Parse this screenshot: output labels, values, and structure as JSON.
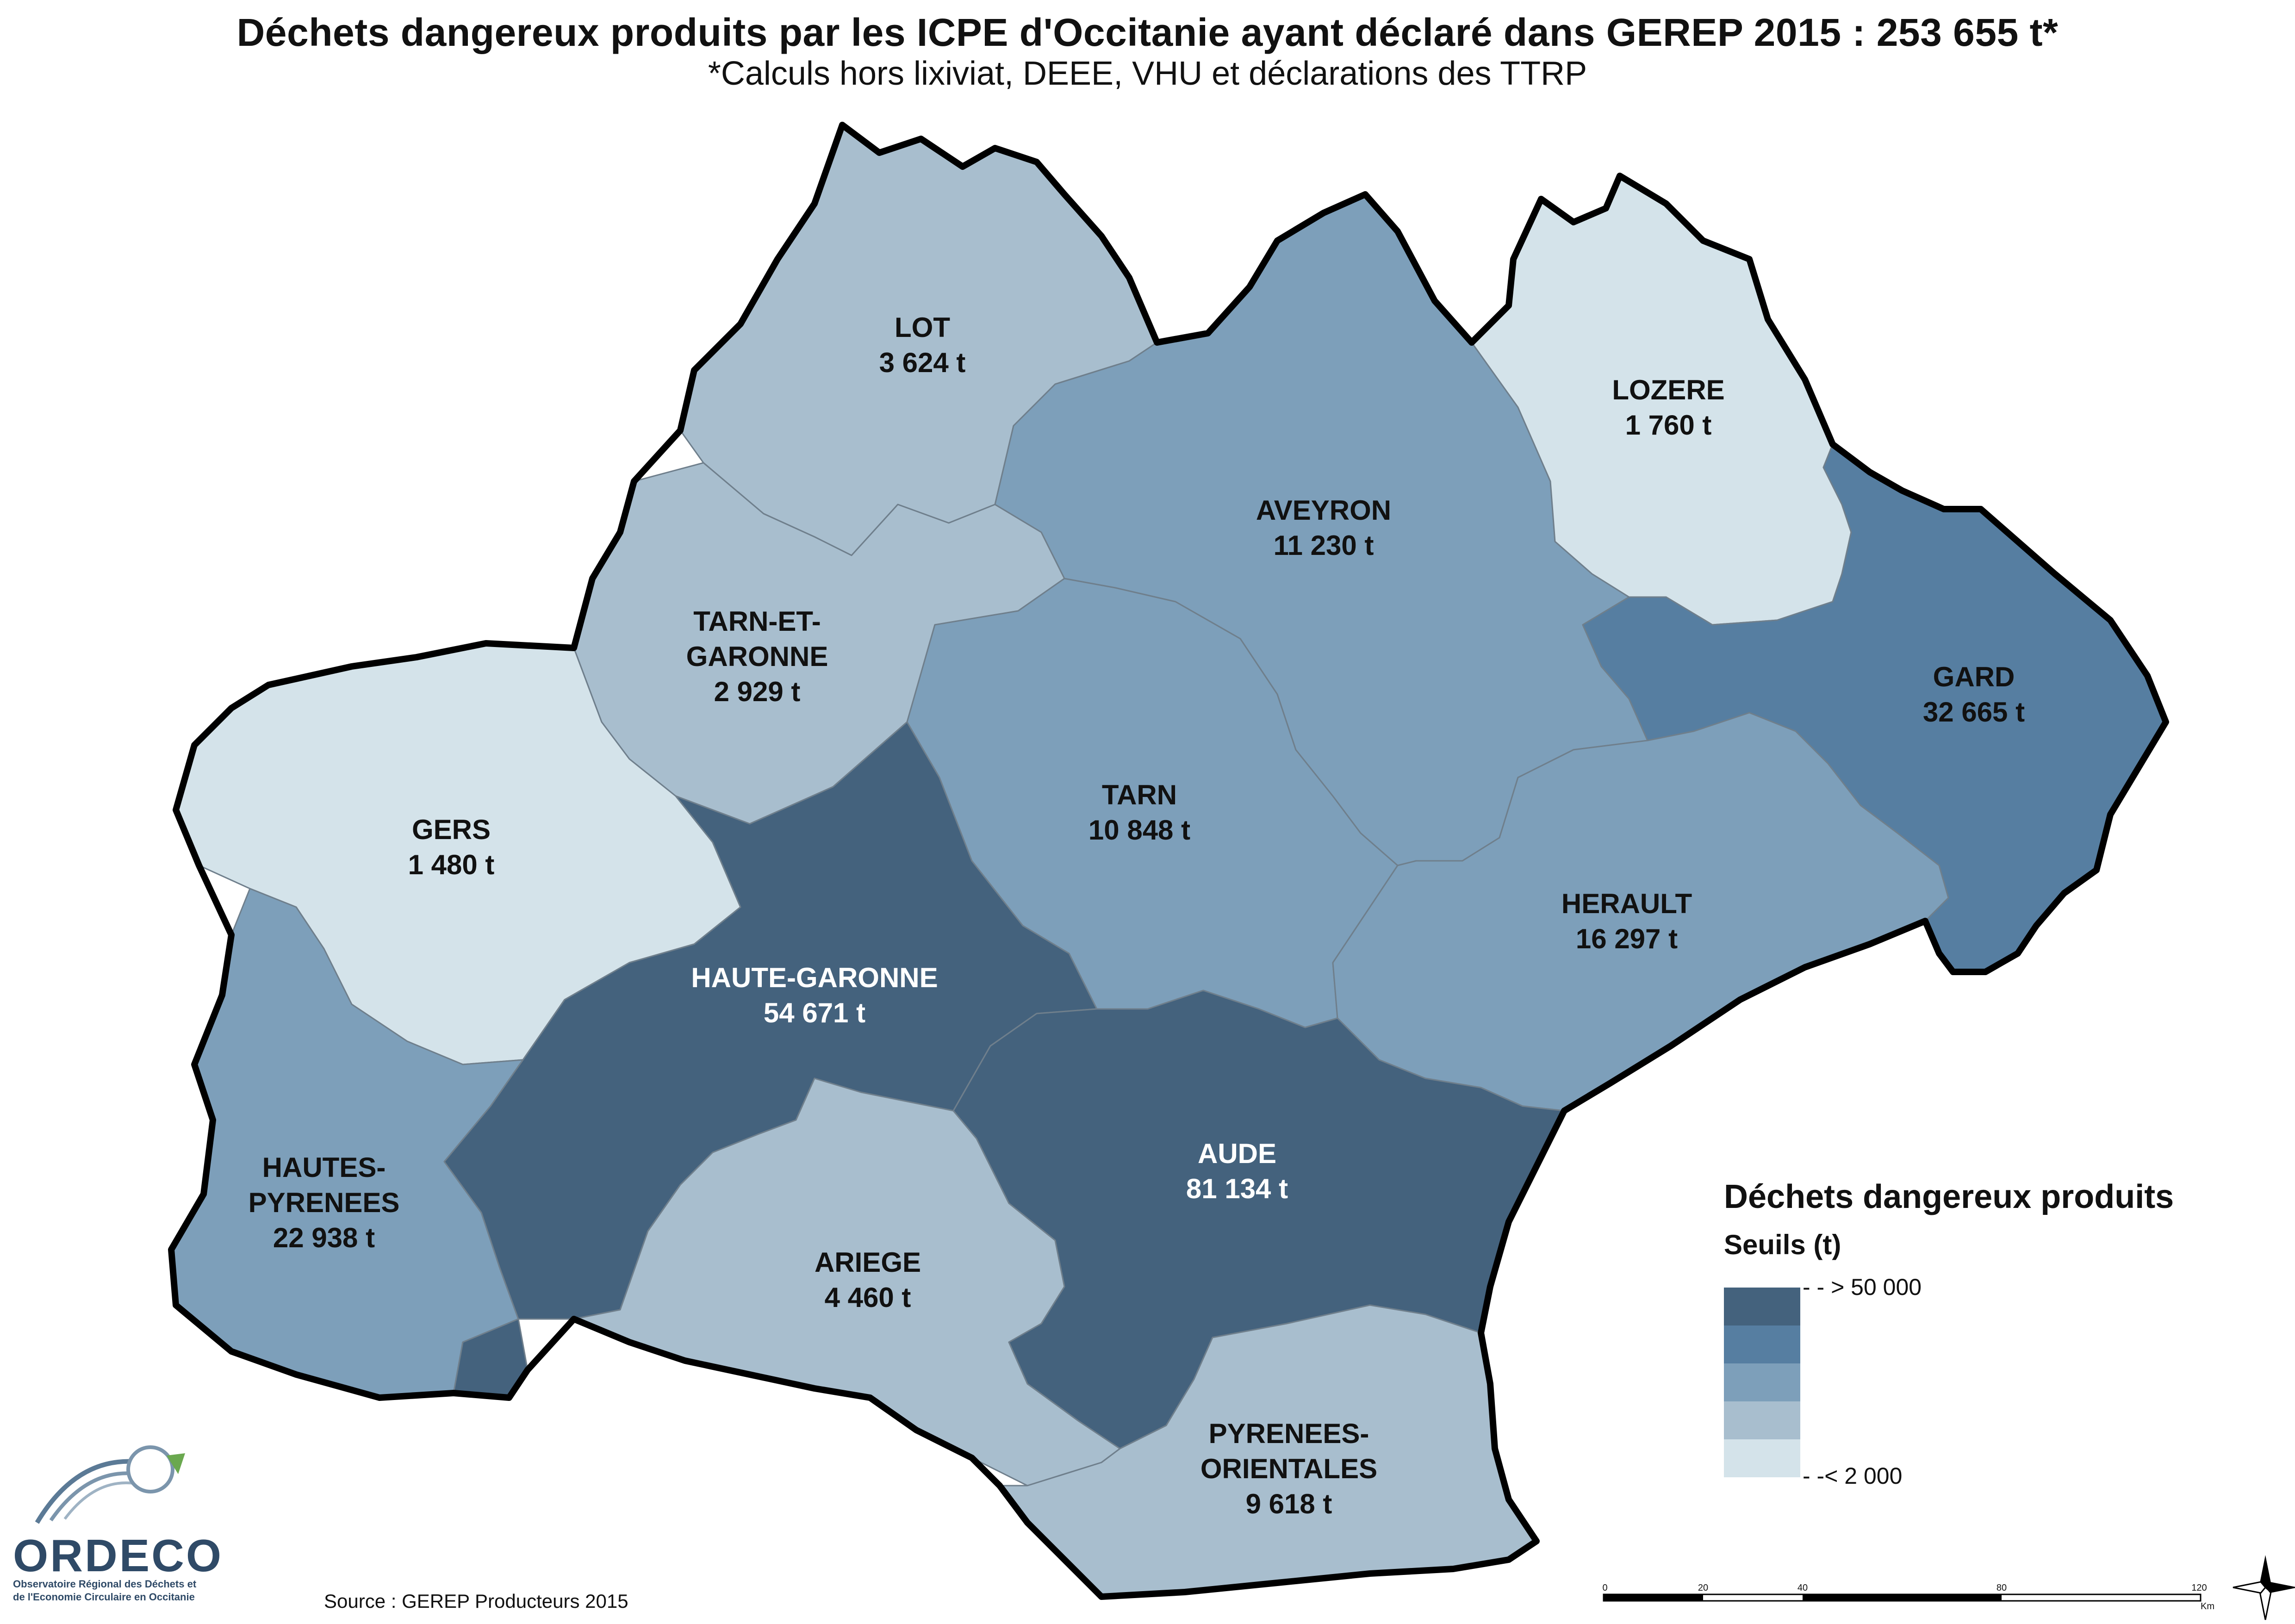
{
  "title": "Déchets dangereux produits par les ICPE d'Occitanie ayant déclaré dans GEREP 2015 : 253 655 t*",
  "subtitle": "*Calculs hors lixiviat, DEEE, VHU et déclarations des TTRP",
  "source": "Source : GEREP Producteurs 2015",
  "logo": {
    "name": "ORDECO",
    "line1": "Observatoire Régional des Déchets et",
    "line2": "de l'Economie Circulaire en Occitanie"
  },
  "legend": {
    "title": "Déchets dangereux produits",
    "subtitle": "Seuils (t)",
    "max_label": "- - > 50 000",
    "min_label": "- -< 2 000",
    "classes": [
      "#44627d",
      "#567ea1",
      "#7d9fba",
      "#a8bece",
      "#d4e3ea"
    ]
  },
  "scale": {
    "ticks": [
      "0",
      "20",
      "40",
      "80",
      "120"
    ],
    "unit": "Km"
  },
  "departments": [
    {
      "name": "LOT",
      "value": "3 624 t"
    },
    {
      "name": "LOZERE",
      "value": "1 760 t"
    },
    {
      "name": "AVEYRON",
      "value": "11 230 t"
    },
    {
      "name": "TARN-ET-",
      "name2": "GARONNE",
      "value": "2 929 t"
    },
    {
      "name": "GARD",
      "value": "32 665 t"
    },
    {
      "name": "GERS",
      "value": "1 480 t"
    },
    {
      "name": "TARN",
      "value": "10 848 t"
    },
    {
      "name": "HERAULT",
      "value": "16 297 t"
    },
    {
      "name": "HAUTE-GARONNE",
      "value": "54 671 t"
    },
    {
      "name": "AUDE",
      "value": "81 134 t"
    },
    {
      "name": "HAUTES-",
      "name2": "PYRENEES",
      "value": "22 938 t"
    },
    {
      "name": "ARIEGE",
      "value": "4 460 t"
    },
    {
      "name": "PYRENEES-",
      "name2": "ORIENTALES",
      "value": "9 618 t"
    }
  ]
}
